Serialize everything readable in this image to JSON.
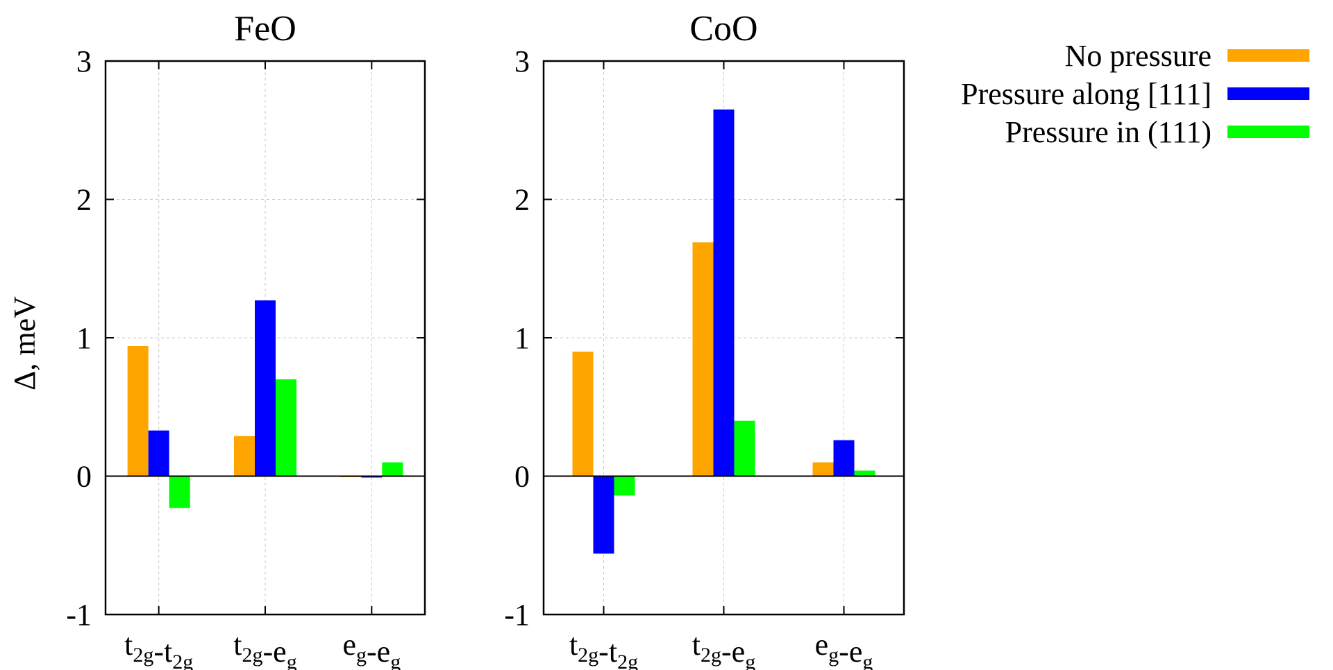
{
  "ylabel": "Δ, meV",
  "chart_data": [
    {
      "type": "bar",
      "title": "FeO",
      "categories": [
        {
          "label": "t2g-t2g",
          "parts": [
            [
              "t",
              "2g"
            ],
            [
              "-t",
              "2g"
            ]
          ]
        },
        {
          "label": "t2g-eg",
          "parts": [
            [
              "t",
              "2g"
            ],
            [
              "-e",
              "g"
            ]
          ]
        },
        {
          "label": "eg-eg",
          "parts": [
            [
              "e",
              "g"
            ],
            [
              "-e",
              "g"
            ]
          ]
        }
      ],
      "series": [
        {
          "name": "No pressure",
          "color": "#ffa500",
          "values": [
            0.94,
            0.29,
            0.0
          ]
        },
        {
          "name": "Pressure along [111]",
          "color": "#0000ff",
          "values": [
            0.33,
            1.27,
            -0.01
          ]
        },
        {
          "name": "Pressure in (111)",
          "color": "#00ff00",
          "values": [
            -0.23,
            0.7,
            0.1
          ]
        }
      ],
      "ylim": [
        -1,
        3
      ],
      "yticks": [
        -1,
        0,
        1,
        2,
        3
      ],
      "ylabel": "Δ, meV",
      "grid": true
    },
    {
      "type": "bar",
      "title": "CoO",
      "categories": [
        {
          "label": "t2g-t2g",
          "parts": [
            [
              "t",
              "2g"
            ],
            [
              "-t",
              "2g"
            ]
          ]
        },
        {
          "label": "t2g-eg",
          "parts": [
            [
              "t",
              "2g"
            ],
            [
              "-e",
              "g"
            ]
          ]
        },
        {
          "label": "eg-eg",
          "parts": [
            [
              "e",
              "g"
            ],
            [
              "-e",
              "g"
            ]
          ]
        }
      ],
      "series": [
        {
          "name": "No pressure",
          "color": "#ffa500",
          "values": [
            0.9,
            1.69,
            0.1
          ]
        },
        {
          "name": "Pressure along [111]",
          "color": "#0000ff",
          "values": [
            -0.56,
            2.65,
            0.26
          ]
        },
        {
          "name": "Pressure in (111)",
          "color": "#00ff00",
          "values": [
            -0.14,
            0.4,
            0.04
          ]
        }
      ],
      "ylim": [
        -1,
        3
      ],
      "yticks": [
        -1,
        0,
        1,
        2,
        3
      ],
      "ylabel": "",
      "grid": true
    }
  ],
  "legend": [
    {
      "label": "No pressure",
      "color": "#ffa500"
    },
    {
      "label": "Pressure along [111]",
      "color": "#0000ff"
    },
    {
      "label": "Pressure in (111)",
      "color": "#00ff00"
    }
  ]
}
